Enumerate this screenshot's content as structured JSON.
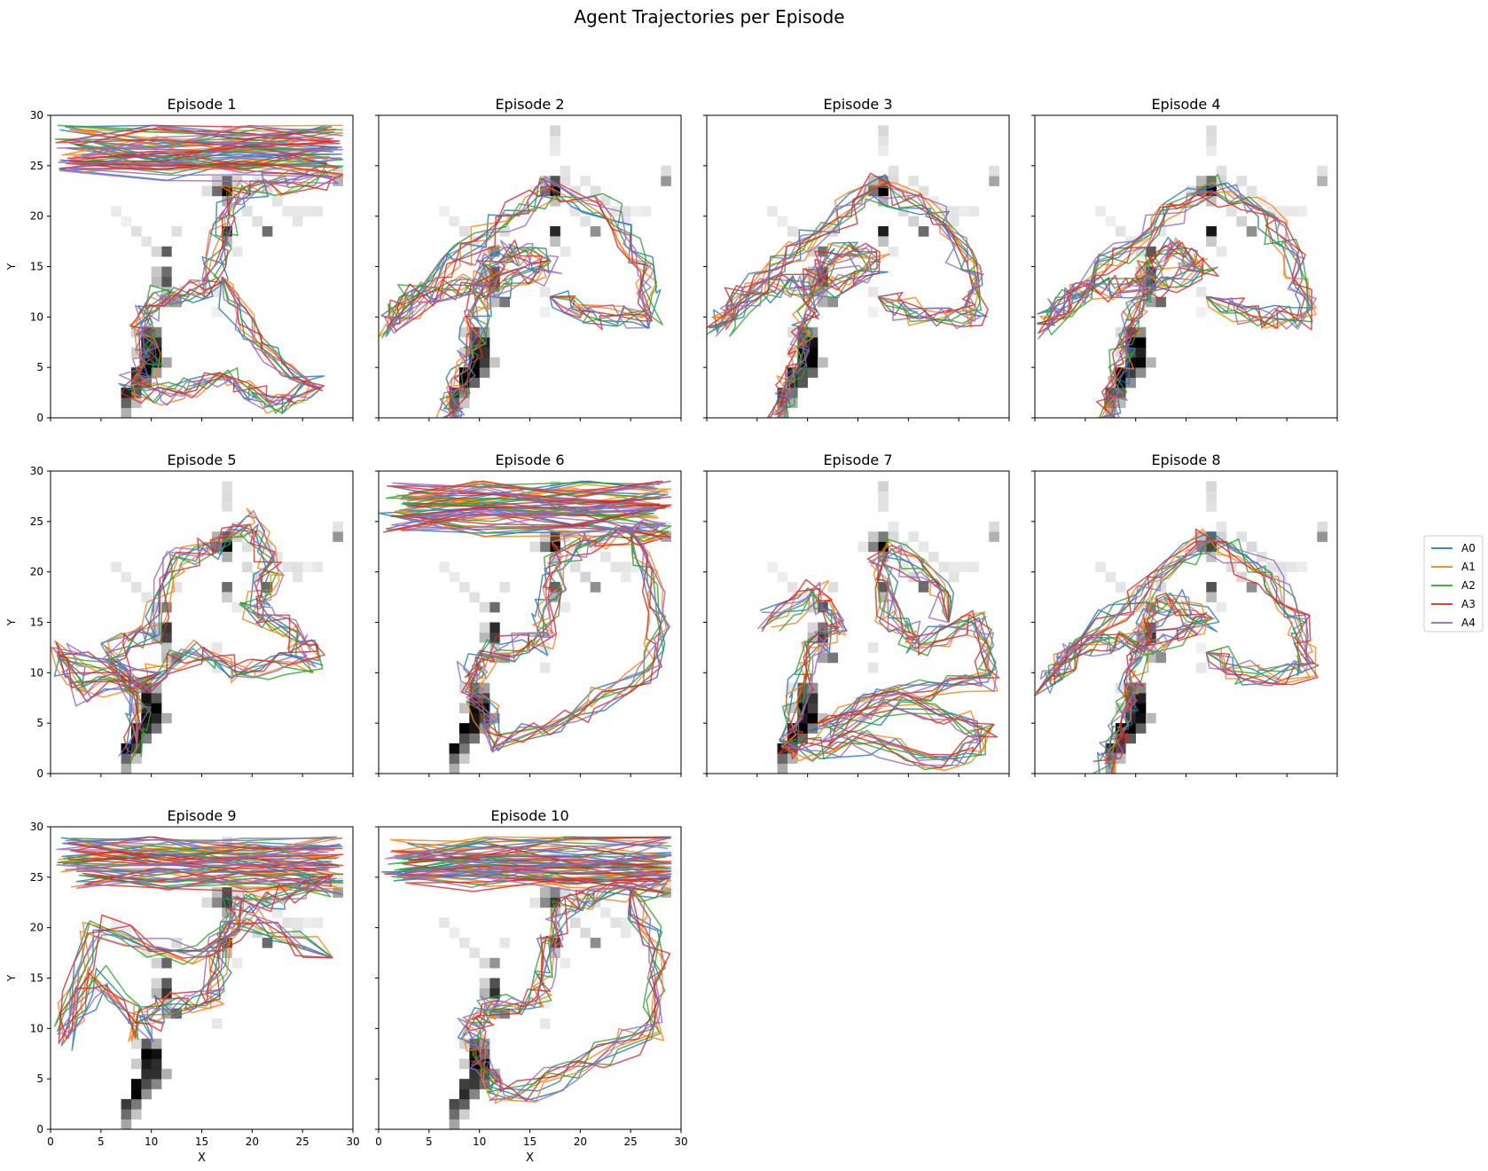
{
  "chart_data": {
    "type": "line",
    "title": "Agent Trajectories per Episode",
    "xlabel": "X",
    "ylabel": "Y",
    "xlim": [
      0,
      30
    ],
    "ylim": [
      0,
      30
    ],
    "xticks": [
      0,
      5,
      10,
      15,
      20,
      25,
      30
    ],
    "yticks": [
      0,
      5,
      10,
      15,
      20,
      25,
      30
    ],
    "grid": false,
    "legend_placement": "right",
    "background": "grayscale occupancy heatmap (visit density, darker = more visits)",
    "series_names": [
      "A0",
      "A1",
      "A2",
      "A3",
      "A4"
    ],
    "colors": {
      "A0": "#1f77b4",
      "A1": "#ff7f0e",
      "A2": "#2ca02c",
      "A3": "#d62728",
      "A4": "#9467bd"
    },
    "heatmap_cells": [
      {
        "x": 7,
        "y": 0,
        "v": 0.35
      },
      {
        "x": 7,
        "y": 1,
        "v": 0.7
      },
      {
        "x": 8,
        "y": 1,
        "v": 0.25
      },
      {
        "x": 7,
        "y": 2,
        "v": 0.85
      },
      {
        "x": 8,
        "y": 2,
        "v": 0.6
      },
      {
        "x": 8,
        "y": 3,
        "v": 0.9
      },
      {
        "x": 9,
        "y": 3,
        "v": 0.55
      },
      {
        "x": 8,
        "y": 4,
        "v": 0.95
      },
      {
        "x": 9,
        "y": 4,
        "v": 0.9
      },
      {
        "x": 10,
        "y": 4,
        "v": 0.5
      },
      {
        "x": 9,
        "y": 5,
        "v": 0.95
      },
      {
        "x": 10,
        "y": 5,
        "v": 0.9
      },
      {
        "x": 11,
        "y": 5,
        "v": 0.3
      },
      {
        "x": 9,
        "y": 6,
        "v": 0.9
      },
      {
        "x": 10,
        "y": 6,
        "v": 0.95
      },
      {
        "x": 8,
        "y": 6,
        "v": 0.2
      },
      {
        "x": 9,
        "y": 7,
        "v": 0.85
      },
      {
        "x": 10,
        "y": 7,
        "v": 0.8
      },
      {
        "x": 9,
        "y": 8,
        "v": 0.7
      },
      {
        "x": 10,
        "y": 8,
        "v": 0.4
      },
      {
        "x": 8,
        "y": 8,
        "v": 0.15
      },
      {
        "x": 11,
        "y": 11,
        "v": 0.3
      },
      {
        "x": 12,
        "y": 11,
        "v": 0.5
      },
      {
        "x": 11,
        "y": 12,
        "v": 0.2
      },
      {
        "x": 11,
        "y": 13,
        "v": 0.85
      },
      {
        "x": 10,
        "y": 13,
        "v": 0.3
      },
      {
        "x": 11,
        "y": 14,
        "v": 0.7
      },
      {
        "x": 10,
        "y": 14,
        "v": 0.2
      },
      {
        "x": 11,
        "y": 16,
        "v": 0.55
      },
      {
        "x": 10,
        "y": 16,
        "v": 0.15
      },
      {
        "x": 9,
        "y": 17,
        "v": 0.1
      },
      {
        "x": 8,
        "y": 18,
        "v": 0.1
      },
      {
        "x": 12,
        "y": 18,
        "v": 0.12
      },
      {
        "x": 7,
        "y": 19,
        "v": 0.08
      },
      {
        "x": 6,
        "y": 20,
        "v": 0.08
      },
      {
        "x": 17,
        "y": 22,
        "v": 0.95
      },
      {
        "x": 16,
        "y": 22,
        "v": 0.55
      },
      {
        "x": 17,
        "y": 23,
        "v": 0.6
      },
      {
        "x": 16,
        "y": 23,
        "v": 0.25
      },
      {
        "x": 18,
        "y": 23,
        "v": 0.15
      },
      {
        "x": 15,
        "y": 22,
        "v": 0.12
      },
      {
        "x": 17,
        "y": 21,
        "v": 0.3
      },
      {
        "x": 17,
        "y": 18,
        "v": 0.75
      },
      {
        "x": 17,
        "y": 17,
        "v": 0.25
      },
      {
        "x": 21,
        "y": 18,
        "v": 0.55
      },
      {
        "x": 20,
        "y": 19,
        "v": 0.15
      },
      {
        "x": 19,
        "y": 20,
        "v": 0.12
      },
      {
        "x": 18,
        "y": 24,
        "v": 0.1
      },
      {
        "x": 17,
        "y": 26,
        "v": 0.1
      },
      {
        "x": 17,
        "y": 27,
        "v": 0.12
      },
      {
        "x": 17,
        "y": 28,
        "v": 0.15
      },
      {
        "x": 20,
        "y": 23,
        "v": 0.1
      },
      {
        "x": 21,
        "y": 22,
        "v": 0.12
      },
      {
        "x": 22,
        "y": 21,
        "v": 0.1
      },
      {
        "x": 23,
        "y": 20,
        "v": 0.12
      },
      {
        "x": 24,
        "y": 20,
        "v": 0.1
      },
      {
        "x": 25,
        "y": 20,
        "v": 0.08
      },
      {
        "x": 26,
        "y": 20,
        "v": 0.08
      },
      {
        "x": 24,
        "y": 19,
        "v": 0.1
      },
      {
        "x": 28,
        "y": 23,
        "v": 0.35
      },
      {
        "x": 28,
        "y": 24,
        "v": 0.12
      },
      {
        "x": 16,
        "y": 12,
        "v": 0.08
      },
      {
        "x": 16,
        "y": 10,
        "v": 0.08
      },
      {
        "x": 18,
        "y": 16,
        "v": 0.1
      },
      {
        "x": 19,
        "y": 22,
        "v": 0.12
      }
    ],
    "panels": [
      {
        "title": "Episode 1",
        "show_xticklabels": false,
        "show_yticklabels": true,
        "show_ylabel": true,
        "show_xlabel": false,
        "seed": 11,
        "style": "topband_mid"
      },
      {
        "title": "Episode 2",
        "show_xticklabels": false,
        "show_yticklabels": false,
        "show_ylabel": false,
        "show_xlabel": false,
        "seed": 22,
        "style": "arc"
      },
      {
        "title": "Episode 3",
        "show_xticklabels": false,
        "show_yticklabels": false,
        "show_ylabel": false,
        "show_xlabel": false,
        "seed": 33,
        "style": "arc"
      },
      {
        "title": "Episode 4",
        "show_xticklabels": false,
        "show_yticklabels": false,
        "show_ylabel": false,
        "show_xlabel": false,
        "seed": 44,
        "style": "arc"
      },
      {
        "title": "Episode 5",
        "show_xticklabels": false,
        "show_yticklabels": true,
        "show_ylabel": true,
        "show_xlabel": false,
        "seed": 55,
        "style": "loop"
      },
      {
        "title": "Episode 6",
        "show_xticklabels": false,
        "show_yticklabels": false,
        "show_ylabel": false,
        "show_xlabel": false,
        "seed": 66,
        "style": "topband_right"
      },
      {
        "title": "Episode 7",
        "show_xticklabels": false,
        "show_yticklabels": false,
        "show_ylabel": false,
        "show_xlabel": false,
        "seed": 77,
        "style": "bottom"
      },
      {
        "title": "Episode 8",
        "show_xticklabels": false,
        "show_yticklabels": false,
        "show_ylabel": false,
        "show_xlabel": false,
        "seed": 88,
        "style": "arc"
      },
      {
        "title": "Episode 9",
        "show_xticklabels": true,
        "show_yticklabels": true,
        "show_ylabel": true,
        "show_xlabel": true,
        "seed": 99,
        "style": "topband_full"
      },
      {
        "title": "Episode 10",
        "show_xticklabels": true,
        "show_yticklabels": false,
        "show_ylabel": false,
        "show_xlabel": true,
        "seed": 110,
        "style": "topband_right"
      }
    ]
  }
}
